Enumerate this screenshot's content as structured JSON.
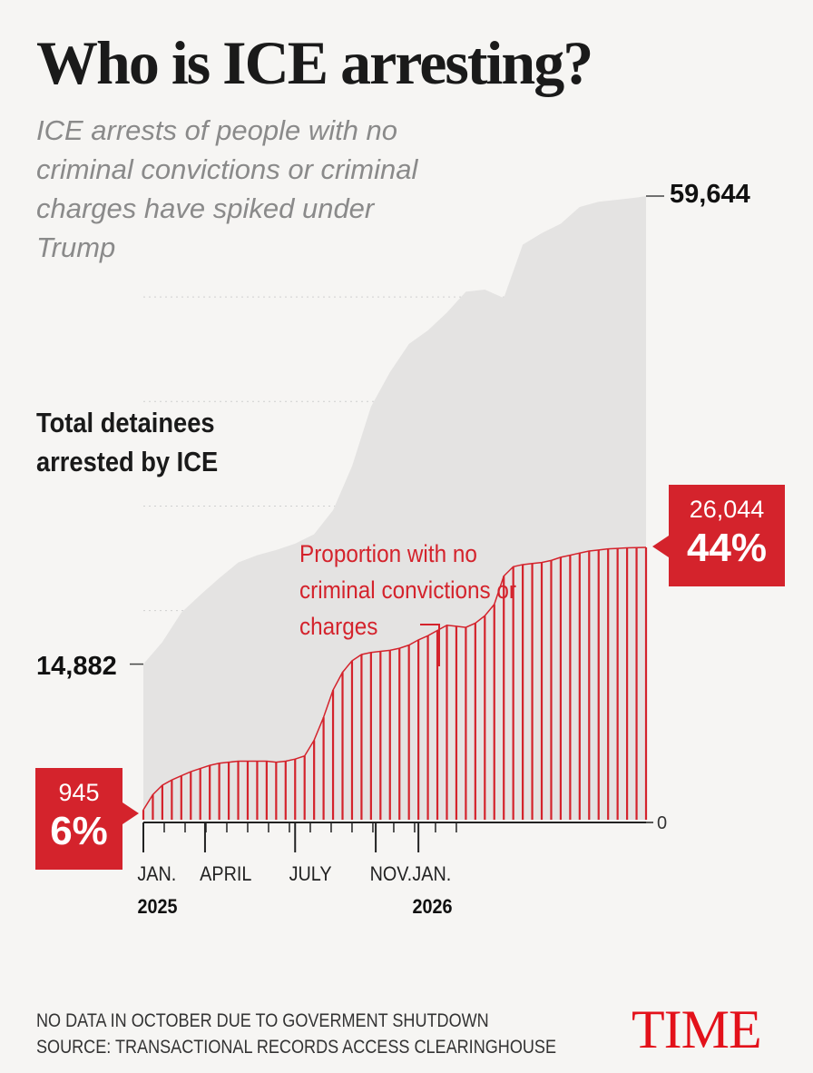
{
  "title": "Who is ICE arresting?",
  "subtitle": "ICE arrests of people with no criminal convictions or criminal charges have spiked under Trump",
  "colors": {
    "accent": "#d4232c",
    "total_fill": "#e4e3e2",
    "background": "#f6f5f3",
    "logo": "#e3111a"
  },
  "chart_data": {
    "type": "area",
    "x_label": "",
    "y_label": "",
    "ylim": [
      0,
      59644
    ],
    "x_range": [
      0,
      53
    ],
    "grid": true,
    "series": [
      {
        "name": "Total detainees arrested by ICE",
        "x": [
          0,
          2,
          4,
          6,
          8,
          10,
          12,
          14,
          16,
          18,
          20,
          22,
          24,
          26,
          28,
          30,
          32,
          34,
          36,
          38,
          40,
          42,
          44,
          46,
          48,
          50,
          52,
          53
        ],
        "values": [
          14882,
          17000,
          19800,
          21500,
          23100,
          24600,
          25300,
          25800,
          26400,
          27300,
          29600,
          33800,
          39500,
          42800,
          45500,
          46800,
          48500,
          50500,
          50700,
          49900,
          55000,
          56100,
          57000,
          58600,
          59100,
          59300,
          59500,
          59644
        ]
      },
      {
        "name": "Proportion with no criminal convictions or charges",
        "x": [
          0,
          1,
          2,
          3,
          4,
          5,
          6,
          7,
          8,
          9,
          10,
          11,
          12,
          13,
          14,
          15,
          16,
          17,
          18,
          19,
          20,
          21,
          22,
          23,
          24,
          25,
          26,
          27,
          28,
          29,
          30,
          31,
          32,
          33,
          34,
          35,
          36,
          37,
          38,
          39,
          40,
          41,
          42,
          43,
          44,
          45,
          46,
          47,
          48,
          49,
          50,
          51,
          52,
          53
        ],
        "values": [
          945,
          2400,
          3300,
          3800,
          4200,
          4600,
          4900,
          5200,
          5400,
          5500,
          5600,
          5600,
          5600,
          5600,
          5500,
          5600,
          5800,
          6100,
          7600,
          9800,
          12400,
          14100,
          15200,
          15800,
          16000,
          16100,
          16200,
          16400,
          16700,
          17200,
          17600,
          18100,
          18600,
          18500,
          18400,
          18800,
          19500,
          20600,
          23300,
          24200,
          24400,
          24500,
          24600,
          24800,
          25100,
          25300,
          25500,
          25700,
          25800,
          25900,
          25950,
          26000,
          26020,
          26044
        ]
      }
    ],
    "ticks": [
      {
        "x": 0,
        "label": "JAN.",
        "year": "2025",
        "major": true
      },
      {
        "x": 6.5,
        "label": "APRIL",
        "year": "",
        "major": true
      },
      {
        "x": 16,
        "label": "JULY",
        "year": "",
        "major": true
      },
      {
        "x": 24.5,
        "label": "NOV.",
        "year": "",
        "major": true
      },
      {
        "x": 29,
        "label": "JAN.",
        "year": "2026",
        "major": true
      }
    ],
    "labels": {
      "total": "Total detainees arrested by ICE",
      "proportion": "Proportion with no criminal convictions or charges",
      "start_total": "14,882",
      "end_total": "59,644",
      "zero": "0",
      "start_count": "945",
      "start_pct": "6%",
      "end_count": "26,044",
      "end_pct": "44%"
    }
  },
  "footer": {
    "note": "NO DATA IN OCTOBER DUE TO GOVERMENT SHUTDOWN",
    "source": "SOURCE: TRANSACTIONAL RECORDS ACCESS CLEARINGHOUSE",
    "logo": "TIME"
  }
}
